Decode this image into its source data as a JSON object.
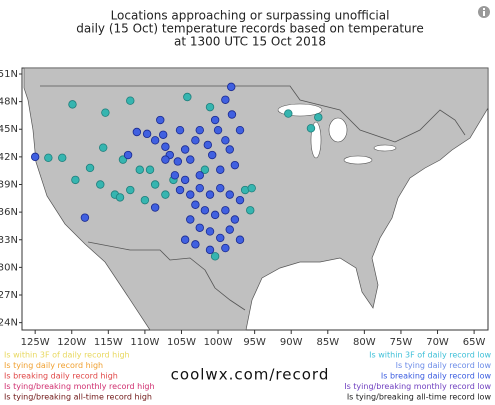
{
  "map": {
    "title": [
      "Locations approaching or surpassing unofficial",
      "daily (15 Oct) temperature records based on temperature",
      "at 1300 UTC 15 Oct 2018"
    ],
    "url": "coolwx.com/record",
    "lonlim": [
      -126.8,
      -63.1
    ],
    "latlim": [
      51.65,
      23.2
    ],
    "lon_ticks": [
      {
        "value": -125,
        "label": "125W"
      },
      {
        "value": -120,
        "label": "120W"
      },
      {
        "value": -115,
        "label": "115W"
      },
      {
        "value": -110,
        "label": "110W"
      },
      {
        "value": -105,
        "label": "105W"
      },
      {
        "value": -100,
        "label": "100W"
      },
      {
        "value": -95,
        "label": "95W"
      },
      {
        "value": -90,
        "label": "90W"
      },
      {
        "value": -85,
        "label": "85W"
      },
      {
        "value": -80,
        "label": "80W"
      },
      {
        "value": -75,
        "label": "75W"
      },
      {
        "value": -70,
        "label": "70W"
      },
      {
        "value": -65,
        "label": "65W"
      }
    ],
    "lat_ticks": [
      {
        "value": 51,
        "label": "51N"
      },
      {
        "value": 48,
        "label": "48N"
      },
      {
        "value": 45,
        "label": "45N"
      },
      {
        "value": 42,
        "label": "42N"
      },
      {
        "value": 39,
        "label": "39N"
      },
      {
        "value": 36,
        "label": "36N"
      },
      {
        "value": 33,
        "label": "33N"
      },
      {
        "value": 30,
        "label": "30N"
      },
      {
        "value": 27,
        "label": "27N"
      },
      {
        "value": 24,
        "label": "24N"
      }
    ],
    "legend_left": [
      {
        "text": "Is within 3F of daily record high",
        "color": "#e8d860"
      },
      {
        "text": "Is tying daily record high",
        "color": "#f0a030"
      },
      {
        "text": "Is breaking daily record high",
        "color": "#e04848"
      },
      {
        "text": "Is tying/breaking monthly record high",
        "color": "#d03070"
      },
      {
        "text": "Is tying/breaking all-time record high",
        "color": "#701818"
      }
    ],
    "legend_right": [
      {
        "text": "Is within 3F of daily record low",
        "color": "#40c0d8",
        "marker_color": "#36b5b0",
        "lon": [
          -119.9,
          -115.4,
          -112.0,
          -104.2,
          -101.1,
          -90.4,
          -87.3,
          -86.3,
          -123.2,
          -121.3,
          -117.5,
          -113.0,
          -115.7,
          -114.1,
          -116.1,
          -119.5,
          -113.4,
          -112.0,
          -110.0,
          -108.6,
          -109.3,
          -110.7,
          -106.1,
          -101.8,
          -96.3,
          -95.4,
          -107.2,
          -95.6,
          -100.4
        ],
        "lat": [
          47.7,
          46.8,
          48.1,
          48.5,
          47.4,
          46.7,
          45.1,
          46.3,
          41.9,
          41.9,
          40.8,
          41.7,
          43.0,
          37.9,
          39.0,
          39.5,
          37.6,
          38.4,
          37.3,
          39.0,
          40.6,
          40.6,
          39.5,
          40.6,
          38.4,
          38.6,
          37.9,
          36.2,
          31.2
        ]
      },
      {
        "text": "Is tying daily record low",
        "color": "#6c8ce8"
      },
      {
        "text": "Is breaking daily record low",
        "color": "#3a5ce0",
        "marker_color": "#4060e0",
        "lon": [
          -111.1,
          -109.7,
          -108.6,
          -107.5,
          -107.2,
          -106.6,
          -105.5,
          -104.5,
          -103.8,
          -103.1,
          -102.5,
          -101.4,
          -100.8,
          -100.0,
          -99.0,
          -98.4,
          -97.7,
          -97.0,
          -99.7,
          -102.5,
          -104.5,
          -105.2,
          -103.8,
          -102.5,
          -101.1,
          -99.7,
          -98.4,
          -97.0,
          -103.1,
          -101.8,
          -100.4,
          -99.0,
          -97.7,
          -103.8,
          -102.5,
          -101.1,
          -99.7,
          -98.4,
          -104.5,
          -103.1,
          -101.1,
          -99.0,
          -97.0,
          -105.2,
          -107.9,
          -100.4,
          -98.1,
          -99.0,
          -98.2,
          -107.2,
          -105.9,
          -112.3,
          -125.0,
          -118.2,
          -108.6
        ],
        "lat": [
          44.7,
          44.5,
          43.8,
          44.4,
          43.1,
          42.2,
          41.5,
          42.8,
          41.7,
          43.8,
          44.9,
          43.3,
          42.2,
          44.9,
          43.8,
          42.8,
          41.1,
          44.9,
          40.6,
          40.0,
          39.5,
          38.4,
          37.9,
          38.6,
          37.9,
          38.6,
          37.9,
          37.3,
          36.8,
          36.2,
          35.7,
          36.2,
          35.2,
          35.2,
          34.3,
          33.9,
          33.2,
          34.1,
          33.0,
          32.5,
          31.9,
          32.1,
          33.0,
          44.9,
          46.0,
          46.0,
          46.6,
          48.2,
          49.6,
          41.7,
          40.0,
          42.2,
          42.0,
          35.4,
          36.5
        ]
      },
      {
        "text": "Is tying/breaking monthly record low",
        "color": "#7040c0"
      },
      {
        "text": "Is tying/breaking all-time record low",
        "color": "#202020"
      }
    ]
  }
}
